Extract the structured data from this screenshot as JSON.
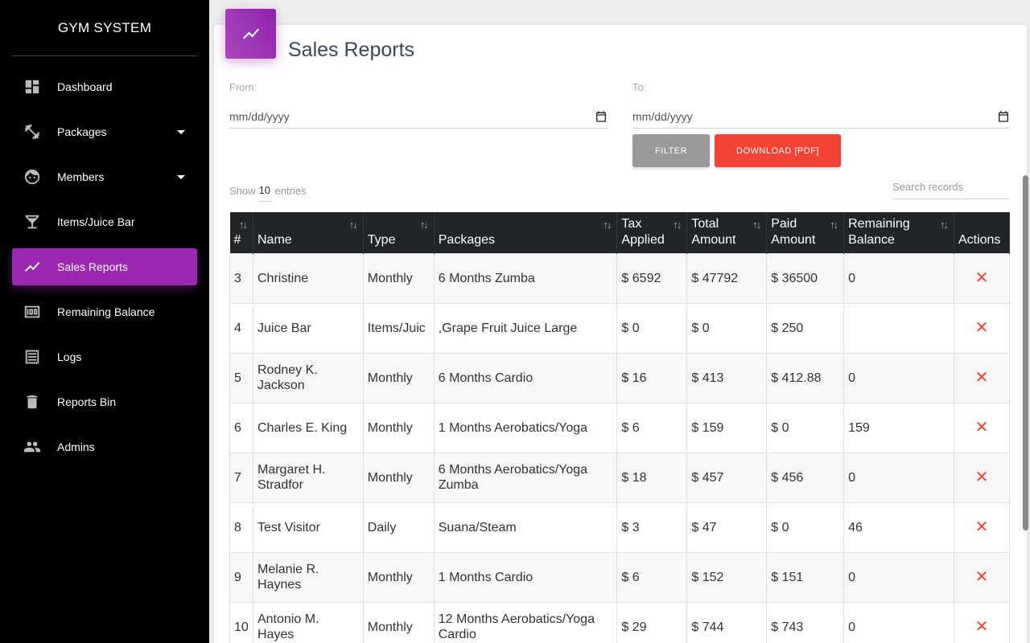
{
  "sidebar": {
    "brand": "GYM SYSTEM",
    "items": [
      {
        "label": "Dashboard",
        "icon": "dashboard-icon"
      },
      {
        "label": "Packages",
        "icon": "fitness-icon",
        "dropdown": true
      },
      {
        "label": "Members",
        "icon": "face-icon",
        "dropdown": true
      },
      {
        "label": "Items/Juice Bar",
        "icon": "cocktail-icon"
      },
      {
        "label": "Sales Reports",
        "icon": "trending-icon",
        "active": true
      },
      {
        "label": "Remaining Balance",
        "icon": "money-icon"
      },
      {
        "label": "Logs",
        "icon": "receipt-icon"
      },
      {
        "label": "Reports Bin",
        "icon": "trash-icon"
      },
      {
        "label": "Admins",
        "icon": "people-icon"
      }
    ]
  },
  "page": {
    "title": "Sales Reports",
    "from_label": "From:",
    "to_label": "To:",
    "from_value": "mm/dd/yyyy",
    "to_value": "mm/dd/yyyy",
    "filter_label": "FILTER",
    "download_label": "DOWNLOAD [PDF]",
    "show_label": "Show",
    "entries_value": "10",
    "entries_label": "entries",
    "search_placeholder": "Search records"
  },
  "table": {
    "headers": [
      "#",
      "Name",
      "Type",
      "Packages",
      "Tax Applied",
      "Total Amount",
      "Paid Amount",
      "Remaining Balance",
      "Actions"
    ],
    "rows": [
      [
        "3",
        "Christine",
        "Monthly",
        "6 Months Zumba",
        "$ 6592",
        "$ 47792",
        "$ 36500",
        "0"
      ],
      [
        "4",
        "Juice Bar",
        "Items/Juic",
        ",Grape Fruit Juice Large",
        "$ 0",
        "$ 0",
        "$ 250",
        ""
      ],
      [
        "5",
        "Rodney K. Jackson",
        "Monthly",
        "6 Months Cardio",
        "$ 16",
        "$ 413",
        "$ 412.88",
        "0"
      ],
      [
        "6",
        "Charles E. King",
        "Monthly",
        "1 Months Aerobatics/Yoga",
        "$ 6",
        "$ 159",
        "$ 0",
        "159"
      ],
      [
        "7",
        "Margaret H. Stradfor",
        "Monthly",
        "6 Months Aerobatics/Yoga Zumba",
        "$ 18",
        "$ 457",
        "$ 456",
        "0"
      ],
      [
        "8",
        "Test Visitor",
        "Daily",
        "Suana/Steam",
        "$ 3",
        "$ 47",
        "$ 0",
        "46"
      ],
      [
        "9",
        "Melanie R. Haynes",
        "Monthly",
        "1 Months Cardio",
        "$ 6",
        "$ 152",
        "$ 151",
        "0"
      ],
      [
        "10",
        "Antonio M. Hayes",
        "Monthly",
        "12 Months Aerobatics/Yoga Cardio",
        "$ 29",
        "$ 744",
        "$ 743",
        "0"
      ]
    ],
    "delete_glyph": "✕"
  },
  "colors": {
    "accent": "#9c27b0",
    "danger": "#f44336",
    "sidebar_bg": "#000000",
    "table_header_bg": "#212529"
  }
}
